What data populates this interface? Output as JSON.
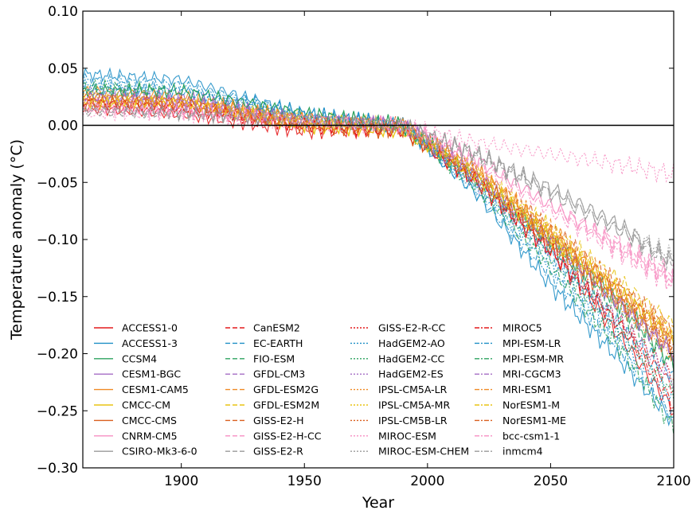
{
  "chart_data": {
    "type": "line",
    "title": "",
    "xlabel": "Year",
    "ylabel": "Temperature anomaly (°C)",
    "xlim": [
      1860,
      2100
    ],
    "ylim": [
      -0.3,
      0.1
    ],
    "x_ticks": [
      1900,
      1950,
      2000,
      2050,
      2100
    ],
    "y_ticks": [
      0.1,
      0.05,
      0.0,
      -0.05,
      -0.1,
      -0.15,
      -0.2,
      -0.25,
      -0.3
    ],
    "x_tick_labels": [
      "1900",
      "1950",
      "2000",
      "2050",
      "2100"
    ],
    "y_tick_labels": [
      "0.10",
      "0.05",
      "0.00",
      "−0.05",
      "−0.10",
      "−0.15",
      "−0.20",
      "−0.25",
      "−0.30"
    ],
    "grid": false,
    "zero_line": 0.0,
    "legend_position": "bottom",
    "legend_columns": 4,
    "series_x": [
      1860,
      1900,
      1950,
      1990,
      2020,
      2050,
      2080,
      2100
    ],
    "series": [
      {
        "name": "ACCESS1-0",
        "color": "#e41a1c",
        "style": "solid",
        "values": [
          0.015,
          0.01,
          -0.005,
          -0.005,
          -0.05,
          -0.11,
          -0.19,
          -0.25
        ]
      },
      {
        "name": "ACCESS1-3",
        "color": "#1f8fc6",
        "style": "solid",
        "values": [
          0.045,
          0.04,
          0.01,
          0.0,
          -0.06,
          -0.14,
          -0.21,
          -0.26
        ]
      },
      {
        "name": "CCSM4",
        "color": "#2ca25f",
        "style": "solid",
        "values": [
          0.03,
          0.03,
          0.01,
          0.0,
          -0.045,
          -0.1,
          -0.16,
          -0.21
        ]
      },
      {
        "name": "CESM1-BGC",
        "color": "#a46cc4",
        "style": "solid",
        "values": [
          0.025,
          0.025,
          0.005,
          0.0,
          -0.045,
          -0.1,
          -0.16,
          -0.2
        ]
      },
      {
        "name": "CESM1-CAM5",
        "color": "#f08a24",
        "style": "solid",
        "values": [
          0.03,
          0.025,
          0.005,
          0.0,
          -0.04,
          -0.095,
          -0.15,
          -0.19
        ]
      },
      {
        "name": "CMCC-CM",
        "color": "#e8c414",
        "style": "solid",
        "values": [
          0.02,
          0.02,
          0.0,
          -0.005,
          -0.045,
          -0.1,
          -0.15,
          -0.19
        ]
      },
      {
        "name": "CMCC-CMS",
        "color": "#d95f1f",
        "style": "solid",
        "values": [
          0.02,
          0.02,
          0.0,
          -0.005,
          -0.05,
          -0.105,
          -0.16,
          -0.2
        ]
      },
      {
        "name": "CNRM-CM5",
        "color": "#f78fc2",
        "style": "solid",
        "values": [
          0.02,
          0.015,
          0.005,
          0.0,
          -0.03,
          -0.07,
          -0.11,
          -0.135
        ]
      },
      {
        "name": "CSIRO-Mk3-6-0",
        "color": "#999999",
        "style": "solid",
        "values": [
          0.015,
          0.012,
          0.005,
          0.0,
          -0.025,
          -0.055,
          -0.09,
          -0.12
        ]
      },
      {
        "name": "CanESM2",
        "color": "#e41a1c",
        "style": "dashed",
        "values": [
          0.025,
          0.02,
          0.0,
          -0.005,
          -0.05,
          -0.11,
          -0.18,
          -0.23
        ]
      },
      {
        "name": "EC-EARTH",
        "color": "#1f8fc6",
        "style": "dashed",
        "values": [
          0.03,
          0.03,
          0.005,
          0.0,
          -0.05,
          -0.11,
          -0.18,
          -0.22
        ]
      },
      {
        "name": "FIO-ESM",
        "color": "#2ca25f",
        "style": "dashed",
        "values": [
          0.03,
          0.03,
          0.01,
          0.0,
          -0.045,
          -0.105,
          -0.17,
          -0.21
        ]
      },
      {
        "name": "GFDL-CM3",
        "color": "#a46cc4",
        "style": "dashed",
        "values": [
          0.025,
          0.02,
          0.005,
          0.0,
          -0.045,
          -0.1,
          -0.16,
          -0.2
        ]
      },
      {
        "name": "GFDL-ESM2G",
        "color": "#f08a24",
        "style": "dashed",
        "values": [
          0.025,
          0.02,
          0.005,
          0.0,
          -0.04,
          -0.09,
          -0.145,
          -0.18
        ]
      },
      {
        "name": "GFDL-ESM2M",
        "color": "#e8c414",
        "style": "dashed",
        "values": [
          0.02,
          0.02,
          0.0,
          -0.005,
          -0.04,
          -0.09,
          -0.14,
          -0.175
        ]
      },
      {
        "name": "GISS-E2-H",
        "color": "#d95f1f",
        "style": "dashed",
        "values": [
          0.02,
          0.015,
          0.0,
          0.0,
          -0.04,
          -0.09,
          -0.145,
          -0.18
        ]
      },
      {
        "name": "GISS-E2-H-CC",
        "color": "#f78fc2",
        "style": "dashed",
        "values": [
          0.015,
          0.015,
          0.005,
          0.0,
          -0.03,
          -0.07,
          -0.105,
          -0.13
        ]
      },
      {
        "name": "GISS-E2-R",
        "color": "#999999",
        "style": "dashed",
        "values": [
          0.015,
          0.012,
          0.005,
          0.0,
          -0.025,
          -0.06,
          -0.095,
          -0.125
        ]
      },
      {
        "name": "GISS-E2-R-CC",
        "color": "#e41a1c",
        "style": "dotted",
        "values": [
          0.02,
          0.015,
          0.0,
          -0.005,
          -0.05,
          -0.11,
          -0.175,
          -0.22
        ]
      },
      {
        "name": "HadGEM2-AO",
        "color": "#1f8fc6",
        "style": "dotted",
        "values": [
          0.035,
          0.03,
          0.01,
          0.0,
          -0.055,
          -0.12,
          -0.19,
          -0.24
        ]
      },
      {
        "name": "HadGEM2-CC",
        "color": "#2ca25f",
        "style": "dotted",
        "values": [
          0.03,
          0.03,
          0.01,
          0.0,
          -0.05,
          -0.115,
          -0.185,
          -0.235
        ]
      },
      {
        "name": "HadGEM2-ES",
        "color": "#a46cc4",
        "style": "dotted",
        "values": [
          0.03,
          0.025,
          0.005,
          0.0,
          -0.05,
          -0.11,
          -0.175,
          -0.225
        ]
      },
      {
        "name": "IPSL-CM5A-LR",
        "color": "#f08a24",
        "style": "dotted",
        "values": [
          0.025,
          0.02,
          0.005,
          0.0,
          -0.045,
          -0.1,
          -0.16,
          -0.2
        ]
      },
      {
        "name": "IPSL-CM5A-MR",
        "color": "#e8c414",
        "style": "dotted",
        "values": [
          0.025,
          0.02,
          0.005,
          0.0,
          -0.045,
          -0.095,
          -0.15,
          -0.19
        ]
      },
      {
        "name": "IPSL-CM5B-LR",
        "color": "#d95f1f",
        "style": "dotted",
        "values": [
          0.02,
          0.02,
          0.0,
          -0.005,
          -0.045,
          -0.1,
          -0.155,
          -0.195
        ]
      },
      {
        "name": "MIROC-ESM",
        "color": "#f78fc2",
        "style": "dotted",
        "values": [
          0.01,
          0.01,
          0.0,
          0.0,
          -0.015,
          -0.025,
          -0.035,
          -0.043
        ]
      },
      {
        "name": "MIROC-ESM-CHEM",
        "color": "#999999",
        "style": "dotted",
        "values": [
          0.012,
          0.01,
          0.005,
          0.0,
          -0.025,
          -0.055,
          -0.09,
          -0.115
        ]
      },
      {
        "name": "MIROC5",
        "color": "#e41a1c",
        "style": "dashdot",
        "values": [
          0.02,
          0.015,
          0.0,
          -0.005,
          -0.05,
          -0.11,
          -0.18,
          -0.245
        ]
      },
      {
        "name": "MPI-ESM-LR",
        "color": "#1f8fc6",
        "style": "dashdot",
        "values": [
          0.04,
          0.035,
          0.01,
          0.0,
          -0.06,
          -0.13,
          -0.2,
          -0.255
        ]
      },
      {
        "name": "MPI-ESM-MR",
        "color": "#2ca25f",
        "style": "dashdot",
        "values": [
          0.035,
          0.03,
          0.01,
          0.0,
          -0.055,
          -0.125,
          -0.2,
          -0.265
        ]
      },
      {
        "name": "MRI-CGCM3",
        "color": "#a46cc4",
        "style": "dashdot",
        "values": [
          0.025,
          0.02,
          0.005,
          0.0,
          -0.045,
          -0.1,
          -0.16,
          -0.2
        ]
      },
      {
        "name": "MRI-ESM1",
        "color": "#f08a24",
        "style": "dashdot",
        "values": [
          0.025,
          0.02,
          0.005,
          0.0,
          -0.04,
          -0.095,
          -0.15,
          -0.185
        ]
      },
      {
        "name": "NorESM1-M",
        "color": "#e8c414",
        "style": "dashdot",
        "values": [
          0.02,
          0.02,
          0.0,
          -0.005,
          -0.045,
          -0.1,
          -0.15,
          -0.185
        ]
      },
      {
        "name": "NorESM1-ME",
        "color": "#d95f1f",
        "style": "dashdot",
        "values": [
          0.02,
          0.02,
          0.0,
          -0.005,
          -0.045,
          -0.1,
          -0.155,
          -0.19
        ]
      },
      {
        "name": "bcc-csm1-1",
        "color": "#f78fc2",
        "style": "dashdot",
        "values": [
          0.015,
          0.012,
          0.005,
          0.0,
          -0.035,
          -0.075,
          -0.115,
          -0.14
        ]
      },
      {
        "name": "inmcm4",
        "color": "#999999",
        "style": "dashdot",
        "values": [
          0.012,
          0.01,
          0.005,
          0.0,
          -0.028,
          -0.06,
          -0.095,
          -0.12
        ]
      }
    ]
  }
}
